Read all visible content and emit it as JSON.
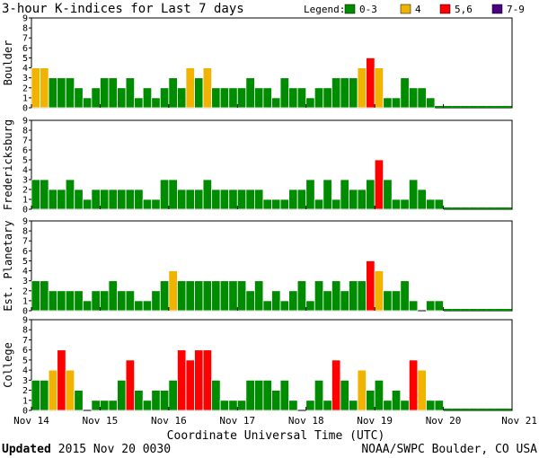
{
  "header": {
    "title": "3-hour K-indices for Last 7 days"
  },
  "legend": {
    "label": "Legend:",
    "items": [
      {
        "name": "0-3",
        "color": "#008c00"
      },
      {
        "name": "4",
        "color": "#f0b400"
      },
      {
        "name": "5,6",
        "color": "#ff0000"
      },
      {
        "name": "7-9",
        "color": "#4b0082"
      }
    ]
  },
  "chart_data": {
    "type": "bar",
    "xlabel": "Coordinate Universal Time (UTC)",
    "x_ticks": [
      "Nov 14",
      "Nov 15",
      "Nov 16",
      "Nov 17",
      "Nov 18",
      "Nov 19",
      "Nov 20",
      "Nov 21"
    ],
    "y_ticks": [
      "0",
      "1",
      "2",
      "3",
      "4",
      "5",
      "6",
      "7",
      "8",
      "9"
    ],
    "ylim": [
      0,
      9
    ],
    "intervals_per_day": 8,
    "num_intervals": 56,
    "panels": [
      {
        "name": "Boulder",
        "values": [
          4,
          4,
          3,
          3,
          3,
          2,
          1,
          2,
          3,
          3,
          2,
          3,
          1,
          2,
          1,
          2,
          3,
          2,
          4,
          3,
          4,
          2,
          2,
          2,
          2,
          3,
          2,
          2,
          1,
          3,
          2,
          2,
          1,
          2,
          2,
          3,
          3,
          3,
          4,
          5,
          4,
          1,
          1,
          3,
          2,
          2,
          1
        ]
      },
      {
        "name": "Fredericksburg",
        "values": [
          3,
          3,
          2,
          2,
          3,
          2,
          1,
          2,
          2,
          2,
          2,
          2,
          2,
          1,
          1,
          3,
          3,
          2,
          2,
          2,
          3,
          2,
          2,
          2,
          2,
          2,
          2,
          1,
          1,
          1,
          2,
          2,
          3,
          1,
          3,
          1,
          3,
          2,
          2,
          3,
          5,
          3,
          1,
          1,
          3,
          2,
          1,
          1
        ]
      },
      {
        "name": "Est. Planetary",
        "values": [
          3,
          3,
          2,
          2,
          2,
          2,
          1,
          2,
          2,
          3,
          2,
          2,
          1,
          1,
          2,
          3,
          4,
          3,
          3,
          3,
          3,
          3,
          3,
          3,
          3,
          2,
          3,
          1,
          2,
          1,
          2,
          3,
          1,
          3,
          2,
          3,
          2,
          3,
          3,
          5,
          4,
          2,
          2,
          3,
          1,
          0,
          1,
          1
        ]
      },
      {
        "name": "College",
        "values": [
          3,
          3,
          4,
          6,
          4,
          2,
          0,
          1,
          1,
          1,
          3,
          5,
          2,
          1,
          2,
          2,
          3,
          6,
          5,
          6,
          6,
          3,
          1,
          1,
          1,
          3,
          3,
          3,
          2,
          3,
          1,
          0,
          1,
          3,
          1,
          5,
          3,
          1,
          4,
          2,
          3,
          1,
          2,
          1,
          5,
          4,
          1,
          1
        ]
      }
    ]
  },
  "footer": {
    "updated_label": "Updated",
    "updated_value": "2015 Nov 20 0030",
    "source": "NOAA/SWPC Boulder, CO USA"
  }
}
